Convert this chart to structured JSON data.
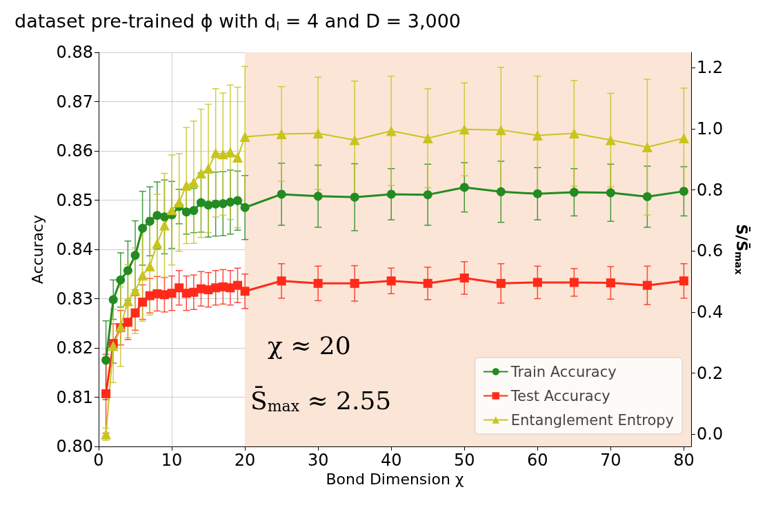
{
  "chart_data": {
    "type": "line",
    "title": "dataset pre-trained ϕ with d$_{I}$ = 4 and D = 3,000",
    "xlabel": "Bond Dimension χ",
    "ylabel": "Accuracy",
    "y2label": "S̄/S̄$_{max}$",
    "x": [
      1,
      2,
      3,
      4,
      5,
      6,
      7,
      8,
      9,
      10,
      11,
      12,
      13,
      14,
      15,
      16,
      17,
      18,
      19,
      20,
      25,
      30,
      35,
      40,
      45,
      50,
      55,
      60,
      65,
      70,
      75,
      80
    ],
    "series": [
      {
        "name": "Train Accuracy",
        "color": "#228b22",
        "marker": "circle",
        "values": [
          0.8175,
          0.8298,
          0.8338,
          0.8357,
          0.8388,
          0.8443,
          0.8457,
          0.8469,
          0.8466,
          0.847,
          0.8487,
          0.8476,
          0.8479,
          0.8495,
          0.849,
          0.8492,
          0.8493,
          0.8496,
          0.8499,
          0.8485,
          0.8512,
          0.8508,
          0.8506,
          0.8512,
          0.8511,
          0.8526,
          0.8517,
          0.8513,
          0.8516,
          0.8515,
          0.8507,
          0.8518
        ],
        "errors": [
          0.008,
          0.004,
          0.0055,
          0.006,
          0.007,
          0.0075,
          0.007,
          0.0068,
          0.0075,
          0.0068,
          0.0035,
          0.0045,
          0.0045,
          0.006,
          0.0065,
          0.0065,
          0.0065,
          0.0065,
          0.006,
          0.0065,
          0.0063,
          0.0063,
          0.0068,
          0.0052,
          0.0062,
          0.005,
          0.0062,
          0.0053,
          0.0048,
          0.0058,
          0.0062,
          0.005
        ]
      },
      {
        "name": "Test Accuracy",
        "color": "#ff2a1a",
        "marker": "square",
        "values": [
          0.8107,
          0.8209,
          0.8241,
          0.8252,
          0.8271,
          0.8293,
          0.8306,
          0.831,
          0.8308,
          0.8311,
          0.8322,
          0.8311,
          0.8313,
          0.832,
          0.8318,
          0.8322,
          0.8324,
          0.8322,
          0.8327,
          0.8315,
          0.8336,
          0.8331,
          0.8331,
          0.8336,
          0.8331,
          0.8342,
          0.8331,
          0.8333,
          0.8333,
          0.8332,
          0.8327,
          0.8336
        ],
        "errors": [
          0.008,
          0.004,
          0.0035,
          0.0035,
          0.0035,
          0.0035,
          0.0035,
          0.0035,
          0.0035,
          0.0035,
          0.0035,
          0.0035,
          0.0035,
          0.0035,
          0.0035,
          0.0035,
          0.0035,
          0.0035,
          0.0035,
          0.0035,
          0.0035,
          0.0035,
          0.0036,
          0.0026,
          0.0033,
          0.0033,
          0.004,
          0.0033,
          0.0028,
          0.0033,
          0.0039,
          0.0035
        ]
      },
      {
        "name": "Entanglement Entropy",
        "color": "#c8c41e",
        "marker": "triangle",
        "axis": "y2",
        "values": [
          0.0,
          0.289,
          0.352,
          0.436,
          0.47,
          0.52,
          0.55,
          0.625,
          0.684,
          0.734,
          0.759,
          0.814,
          0.825,
          0.854,
          0.87,
          0.921,
          0.917,
          0.923,
          0.906,
          0.974,
          0.983,
          0.985,
          0.963,
          0.993,
          0.969,
          0.998,
          0.996,
          0.978,
          0.985,
          0.963,
          0.94,
          0.969
        ],
        "errors": [
          0.02,
          0.12,
          0.13,
          0.12,
          0.14,
          0.15,
          0.16,
          0.16,
          0.17,
          0.18,
          0.16,
          0.19,
          0.2,
          0.21,
          0.21,
          0.21,
          0.2,
          0.22,
          0.23,
          0.23,
          0.155,
          0.184,
          0.193,
          0.179,
          0.162,
          0.152,
          0.205,
          0.194,
          0.173,
          0.153,
          0.222,
          0.164
        ]
      }
    ],
    "xlim": [
      0,
      81
    ],
    "xticks": [
      0,
      10,
      20,
      30,
      40,
      50,
      60,
      70,
      80
    ],
    "ylim": [
      0.8,
      0.88
    ],
    "yticks": [
      {
        "value": 0.8,
        "label": "0.80"
      },
      {
        "value": 0.81,
        "label": "0.81"
      },
      {
        "value": 0.82,
        "label": "0.82"
      },
      {
        "value": 0.83,
        "label": "0.83"
      },
      {
        "value": 0.84,
        "label": "0.84"
      },
      {
        "value": 0.85,
        "label": "0.85"
      },
      {
        "value": 0.86,
        "label": "0.86"
      },
      {
        "value": 0.87,
        "label": "0.87"
      },
      {
        "value": 0.88,
        "label": "0.88"
      }
    ],
    "y2lim": [
      -0.04,
      1.25
    ],
    "y2ticks": [
      {
        "value": 0,
        "label": "0.0"
      },
      {
        "value": 0.2,
        "label": "0.2"
      },
      {
        "value": 0.4,
        "label": "0.4"
      },
      {
        "value": 0.6,
        "label": "0.6"
      },
      {
        "value": 0.8,
        "label": "0.8"
      },
      {
        "value": 1.0,
        "label": "1.0"
      },
      {
        "value": 1.2,
        "label": "1.2"
      }
    ],
    "bands": [
      {
        "axis": "x",
        "from": 20,
        "to": 81,
        "color": "#fbe5d6"
      }
    ],
    "annotations": [
      "χ ≈ 20",
      "S̄$_{max}$ ≈ 2.55"
    ],
    "grid": true,
    "legend": "bottom right",
    "line_style": "solid"
  }
}
